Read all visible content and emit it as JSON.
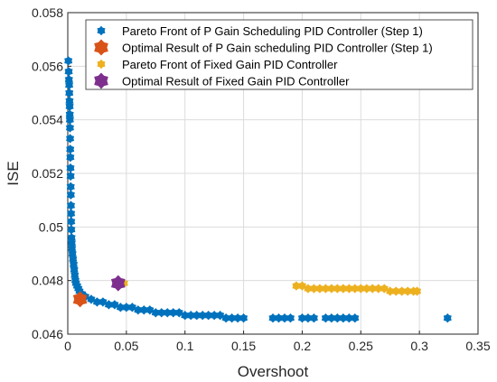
{
  "chart_data": {
    "type": "scatter",
    "xlabel": "Overshoot",
    "ylabel": "ISE",
    "xlim": [
      0,
      0.35
    ],
    "ylim": [
      0.046,
      0.058
    ],
    "xticks": [
      {
        "value": 0,
        "label": "0"
      },
      {
        "value": 0.05,
        "label": "0.05"
      },
      {
        "value": 0.1,
        "label": "0.1"
      },
      {
        "value": 0.15,
        "label": "0.15"
      },
      {
        "value": 0.2,
        "label": "0.2"
      },
      {
        "value": 0.25,
        "label": "0.25"
      },
      {
        "value": 0.3,
        "label": "0.3"
      },
      {
        "value": 0.35,
        "label": "0.35"
      }
    ],
    "yticks": [
      {
        "value": 0.046,
        "label": "0.046"
      },
      {
        "value": 0.048,
        "label": "0.048"
      },
      {
        "value": 0.05,
        "label": "0.05"
      },
      {
        "value": 0.052,
        "label": "0.052"
      },
      {
        "value": 0.054,
        "label": "0.054"
      },
      {
        "value": 0.056,
        "label": "0.056"
      },
      {
        "value": 0.058,
        "label": "0.058"
      }
    ],
    "grid": true,
    "legend_position": "top-right",
    "series": [
      {
        "name": "Pareto Front of P Gain Scheduling PID Controller (Step 1)",
        "color": "#0072BD",
        "marker": "hexagram",
        "size": "small",
        "points": [
          [
            0.0005,
            0.0562
          ],
          [
            0.0008,
            0.0558
          ],
          [
            0.001,
            0.0555
          ],
          [
            0.0012,
            0.0553
          ],
          [
            0.0013,
            0.055
          ],
          [
            0.0015,
            0.0547
          ],
          [
            0.0016,
            0.0545
          ],
          [
            0.0017,
            0.0542
          ],
          [
            0.0018,
            0.054
          ],
          [
            0.0019,
            0.0537
          ],
          [
            0.002,
            0.0533
          ],
          [
            0.0021,
            0.0529
          ],
          [
            0.0022,
            0.0526
          ],
          [
            0.0023,
            0.0522
          ],
          [
            0.0024,
            0.0519
          ],
          [
            0.0025,
            0.0515
          ],
          [
            0.0026,
            0.0512
          ],
          [
            0.0027,
            0.0508
          ],
          [
            0.0028,
            0.0505
          ],
          [
            0.0029,
            0.0502
          ],
          [
            0.003,
            0.0499
          ],
          [
            0.0032,
            0.0496
          ],
          [
            0.0034,
            0.0494
          ],
          [
            0.0036,
            0.0492
          ],
          [
            0.004,
            0.049
          ],
          [
            0.0045,
            0.0488
          ],
          [
            0.005,
            0.0486
          ],
          [
            0.0055,
            0.0484
          ],
          [
            0.006,
            0.0482
          ],
          [
            0.0065,
            0.048
          ],
          [
            0.007,
            0.0479
          ],
          [
            0.008,
            0.0478
          ],
          [
            0.009,
            0.0477
          ],
          [
            0.01,
            0.0476
          ],
          [
            0.012,
            0.0475
          ],
          [
            0.015,
            0.0474
          ],
          [
            0.02,
            0.0473
          ],
          [
            0.025,
            0.0472
          ],
          [
            0.03,
            0.0472
          ],
          [
            0.035,
            0.0471
          ],
          [
            0.04,
            0.0471
          ],
          [
            0.045,
            0.047
          ],
          [
            0.05,
            0.047
          ],
          [
            0.055,
            0.047
          ],
          [
            0.06,
            0.0469
          ],
          [
            0.065,
            0.0469
          ],
          [
            0.07,
            0.0469
          ],
          [
            0.075,
            0.0468
          ],
          [
            0.08,
            0.0468
          ],
          [
            0.085,
            0.0468
          ],
          [
            0.09,
            0.0468
          ],
          [
            0.095,
            0.0468
          ],
          [
            0.1,
            0.0467
          ],
          [
            0.105,
            0.0467
          ],
          [
            0.11,
            0.0467
          ],
          [
            0.115,
            0.0467
          ],
          [
            0.12,
            0.0467
          ],
          [
            0.125,
            0.0467
          ],
          [
            0.13,
            0.0467
          ],
          [
            0.135,
            0.0466
          ],
          [
            0.14,
            0.0466
          ],
          [
            0.145,
            0.0466
          ],
          [
            0.15,
            0.0466
          ],
          [
            0.175,
            0.0466
          ],
          [
            0.18,
            0.0466
          ],
          [
            0.185,
            0.0466
          ],
          [
            0.19,
            0.0466
          ],
          [
            0.2,
            0.0466
          ],
          [
            0.205,
            0.0466
          ],
          [
            0.21,
            0.0466
          ],
          [
            0.22,
            0.0466
          ],
          [
            0.225,
            0.0466
          ],
          [
            0.23,
            0.0466
          ],
          [
            0.235,
            0.0466
          ],
          [
            0.24,
            0.0466
          ],
          [
            0.245,
            0.0466
          ],
          [
            0.324,
            0.0466
          ]
        ]
      },
      {
        "name": "Optimal Result of P Gain scheduling PID Controller (Step 1)",
        "color": "#D95319",
        "marker": "hexagram",
        "size": "large",
        "points": [
          [
            0.0105,
            0.0473
          ]
        ]
      },
      {
        "name": "Pareto Front of Fixed Gain PID Controller",
        "color": "#EDB120",
        "marker": "hexagram",
        "size": "small",
        "points": [
          [
            0.048,
            0.0479
          ],
          [
            0.195,
            0.0478
          ],
          [
            0.2,
            0.0478
          ],
          [
            0.205,
            0.0477
          ],
          [
            0.21,
            0.0477
          ],
          [
            0.215,
            0.0477
          ],
          [
            0.22,
            0.0477
          ],
          [
            0.225,
            0.0477
          ],
          [
            0.23,
            0.0477
          ],
          [
            0.235,
            0.0477
          ],
          [
            0.24,
            0.0477
          ],
          [
            0.245,
            0.0477
          ],
          [
            0.25,
            0.0477
          ],
          [
            0.255,
            0.0477
          ],
          [
            0.26,
            0.0477
          ],
          [
            0.265,
            0.0477
          ],
          [
            0.27,
            0.0477
          ],
          [
            0.275,
            0.0476
          ],
          [
            0.28,
            0.0476
          ],
          [
            0.285,
            0.0476
          ],
          [
            0.29,
            0.0476
          ],
          [
            0.295,
            0.0476
          ],
          [
            0.298,
            0.0476
          ]
        ]
      },
      {
        "name": "Optimal Result of Fixed Gain PID Controller",
        "color": "#7E2F8E",
        "marker": "hexagram",
        "size": "large",
        "points": [
          [
            0.043,
            0.0479
          ]
        ]
      }
    ]
  }
}
